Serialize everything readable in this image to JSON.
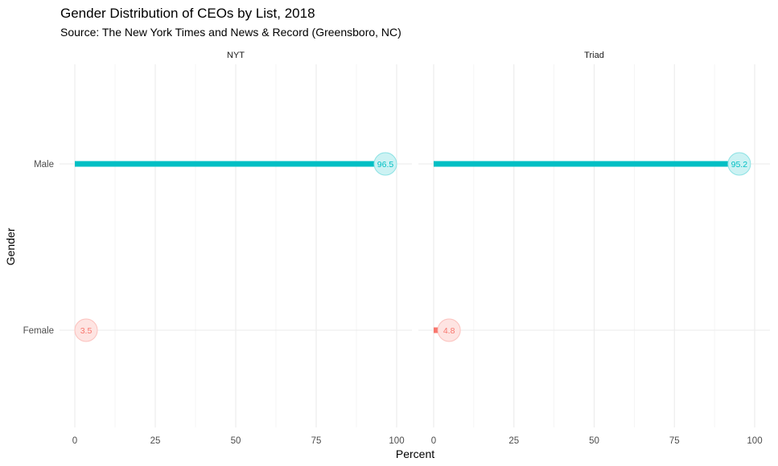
{
  "chart_data": {
    "type": "lollipop",
    "title": "Gender Distribution of CEOs by List, 2018",
    "subtitle": "Source: The New York Times and News & Record (Greensboro, NC)",
    "xlabel": "Percent",
    "ylabel": "Gender",
    "xlim": [
      0,
      100
    ],
    "x_ticks": [
      "0",
      "25",
      "50",
      "75",
      "100"
    ],
    "categories": [
      "Male",
      "Female"
    ],
    "grid": true,
    "legend": "none",
    "colors": {
      "Male": "#00BFC4",
      "Female": "#F8766D"
    },
    "panels": [
      {
        "name": "NYT",
        "values": [
          {
            "category": "Male",
            "value": 96.5,
            "label": "96.5"
          },
          {
            "category": "Female",
            "value": 3.5,
            "label": "3.5"
          }
        ]
      },
      {
        "name": "Triad",
        "values": [
          {
            "category": "Male",
            "value": 95.2,
            "label": "95.2"
          },
          {
            "category": "Female",
            "value": 4.8,
            "label": "4.8"
          }
        ]
      }
    ]
  }
}
